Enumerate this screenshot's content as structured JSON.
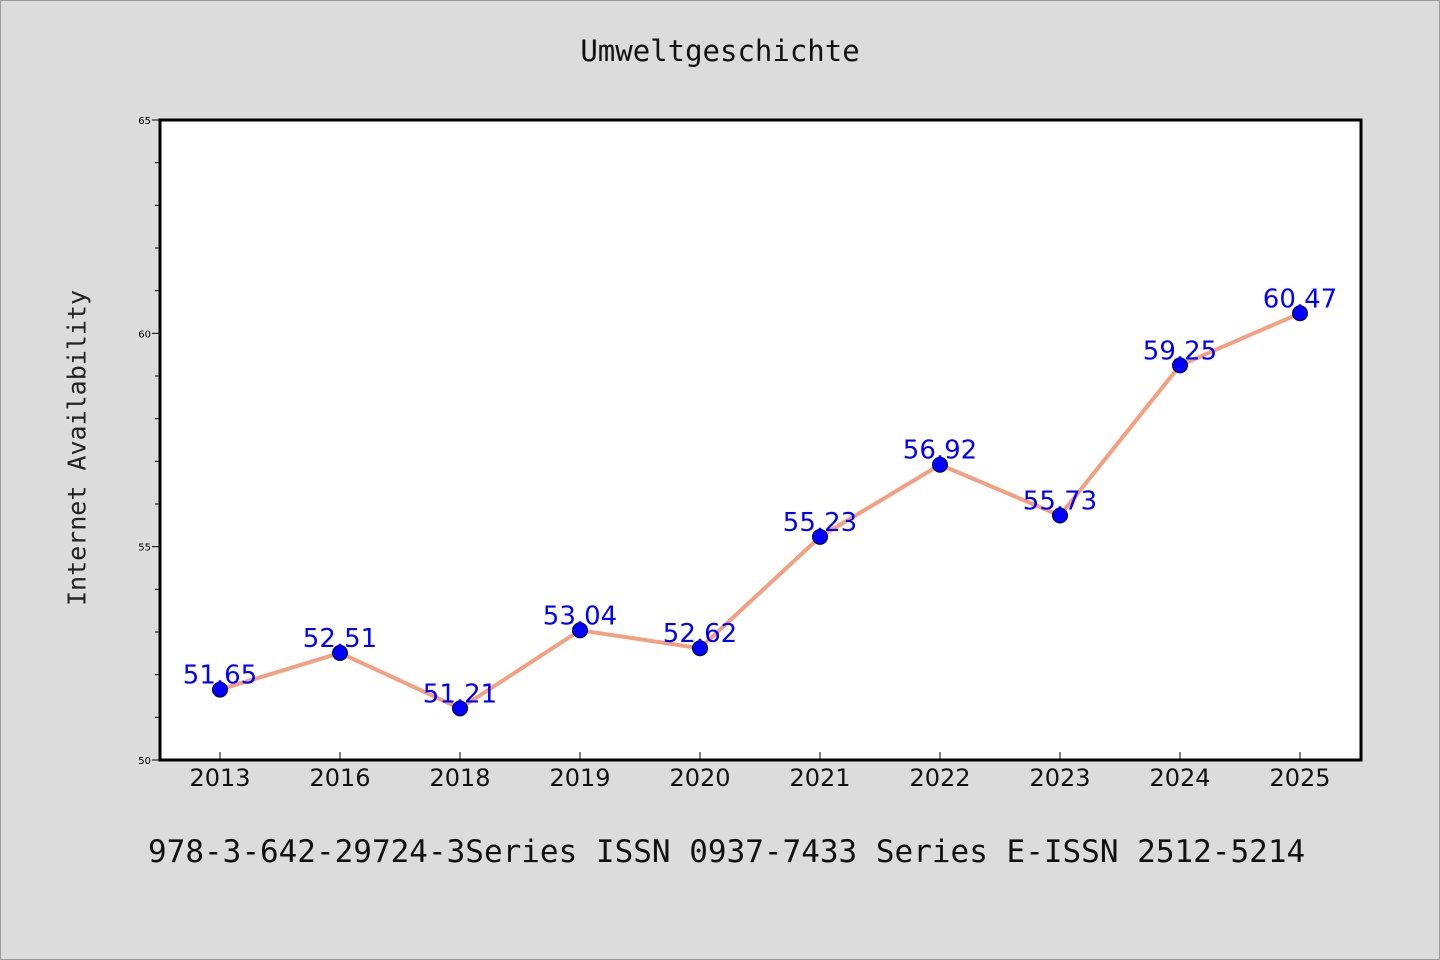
{
  "chart_data": {
    "type": "line",
    "title": "Umweltgeschichte",
    "xlabel": "",
    "ylabel": "Internet Availability",
    "categories": [
      "2013",
      "2016",
      "2018",
      "2019",
      "2020",
      "2021",
      "2022",
      "2023",
      "2024",
      "2025"
    ],
    "series": [
      {
        "values": [
          51.65,
          52.51,
          51.21,
          53.04,
          52.62,
          55.23,
          56.92,
          55.73,
          59.25,
          60.47
        ],
        "labels": [
          "51.65",
          "52.51",
          "51.21",
          "53.04",
          "52.62",
          "55.23",
          "56.92",
          "55.73",
          "59.25",
          "60.47"
        ]
      }
    ],
    "ylim": [
      50,
      65
    ],
    "yticks": [
      "50",
      "55",
      "60",
      "65"
    ],
    "grid": false,
    "legend": "none",
    "colors": {
      "line": "#f4a080",
      "marker": "#0000ff",
      "label": "#0000ff",
      "background": "#dcdcdc",
      "plot_background": "#ffffff"
    }
  },
  "footer": {
    "text": "978-3-642-29724-3Series ISSN 0937-7433 Series E-ISSN 2512-5214"
  }
}
